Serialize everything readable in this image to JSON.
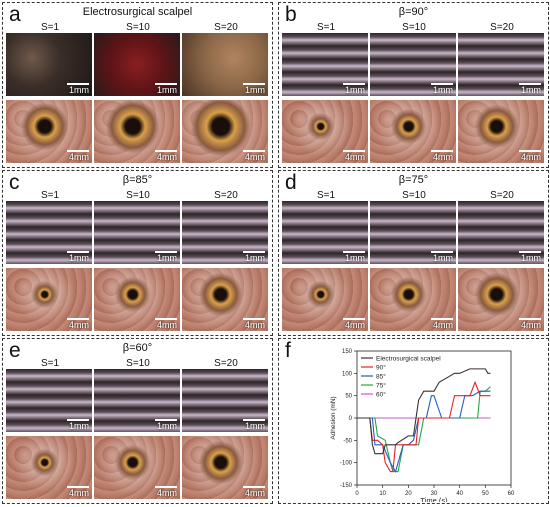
{
  "panels": [
    {
      "letter": "a",
      "title": "Electrosurgical scalpel",
      "labels": [
        "S=1",
        "S=10",
        "S=20"
      ],
      "scale_top": "1mm",
      "scale_bottom": "4mm",
      "kind": "scalpel"
    },
    {
      "letter": "b",
      "title": "β=90°",
      "labels": [
        "S=1",
        "S=10",
        "S=20"
      ],
      "scale_top": "1mm",
      "scale_bottom": "4mm",
      "kind": "laser"
    },
    {
      "letter": "c",
      "title": "β=85°",
      "labels": [
        "S=1",
        "S=10",
        "S=20"
      ],
      "scale_top": "1mm",
      "scale_bottom": "4mm",
      "kind": "laser"
    },
    {
      "letter": "d",
      "title": "β=75°",
      "labels": [
        "S=1",
        "S=10",
        "S=20"
      ],
      "scale_top": "1mm",
      "scale_bottom": "4mm",
      "kind": "laser"
    },
    {
      "letter": "e",
      "title": "β=60°",
      "labels": [
        "S=1",
        "S=10",
        "S=20"
      ],
      "scale_top": "1mm",
      "scale_bottom": "4mm",
      "kind": "laser"
    }
  ],
  "chart": {
    "letter": "f",
    "chart_data": {
      "type": "line",
      "xlabel": "Time (s)",
      "ylabel": "Adhesion (mN)",
      "xlim": [
        0,
        60
      ],
      "ylim": [
        -150,
        150
      ],
      "xticks": [
        0,
        10,
        20,
        30,
        40,
        50,
        60
      ],
      "yticks": [
        -150,
        -100,
        -50,
        0,
        50,
        100,
        150
      ],
      "legend_position": "top-left",
      "series": [
        {
          "name": "Electrosurgical scalpel",
          "color": "#333333",
          "x": [
            0,
            5,
            6,
            7,
            10,
            11,
            13,
            15,
            16,
            20,
            22,
            24,
            26,
            30,
            32,
            35,
            38,
            40,
            44,
            46,
            50,
            51,
            52
          ],
          "y": [
            0,
            0,
            -60,
            -80,
            -80,
            -60,
            -60,
            -60,
            -55,
            -40,
            -40,
            40,
            60,
            60,
            80,
            90,
            100,
            100,
            110,
            110,
            110,
            100,
            100
          ]
        },
        {
          "name": "90°",
          "color": "#e8202a",
          "x": [
            0,
            5,
            6,
            8,
            10,
            11,
            13,
            14,
            15,
            17,
            20,
            23,
            24,
            30,
            36,
            38,
            44,
            46,
            48,
            50,
            52
          ],
          "y": [
            0,
            0,
            -50,
            -50,
            -60,
            -100,
            -120,
            -120,
            -60,
            -60,
            -60,
            -60,
            0,
            0,
            0,
            50,
            50,
            80,
            50,
            50,
            50
          ]
        },
        {
          "name": "85°",
          "color": "#1f5fbf",
          "x": [
            0,
            6,
            7,
            10,
            13,
            15,
            18,
            20,
            22,
            24,
            27,
            29,
            30,
            33,
            36,
            40,
            42,
            45,
            48,
            52
          ],
          "y": [
            0,
            0,
            -60,
            -60,
            -100,
            -120,
            -60,
            -60,
            -50,
            0,
            0,
            50,
            50,
            0,
            0,
            0,
            50,
            50,
            60,
            60
          ]
        },
        {
          "name": "75°",
          "color": "#21a64a",
          "x": [
            0,
            7,
            8,
            11,
            13,
            14,
            16,
            18,
            20,
            24,
            26,
            29,
            36,
            38,
            44,
            47,
            48,
            50,
            52
          ],
          "y": [
            0,
            0,
            -40,
            -50,
            -100,
            -120,
            -120,
            -60,
            -60,
            -60,
            0,
            0,
            0,
            0,
            0,
            0,
            60,
            60,
            70
          ]
        },
        {
          "name": "60°",
          "color": "#c05bd1",
          "x": [
            0,
            52
          ],
          "y": [
            0,
            0
          ]
        }
      ]
    }
  },
  "colors": {
    "tissue": "#b97c6a",
    "strip_dark": "#2b2426",
    "strip_light": "#c9b9c8",
    "scalpel_red": "#8a1f22",
    "scalpel_brown": "#8c6848"
  }
}
